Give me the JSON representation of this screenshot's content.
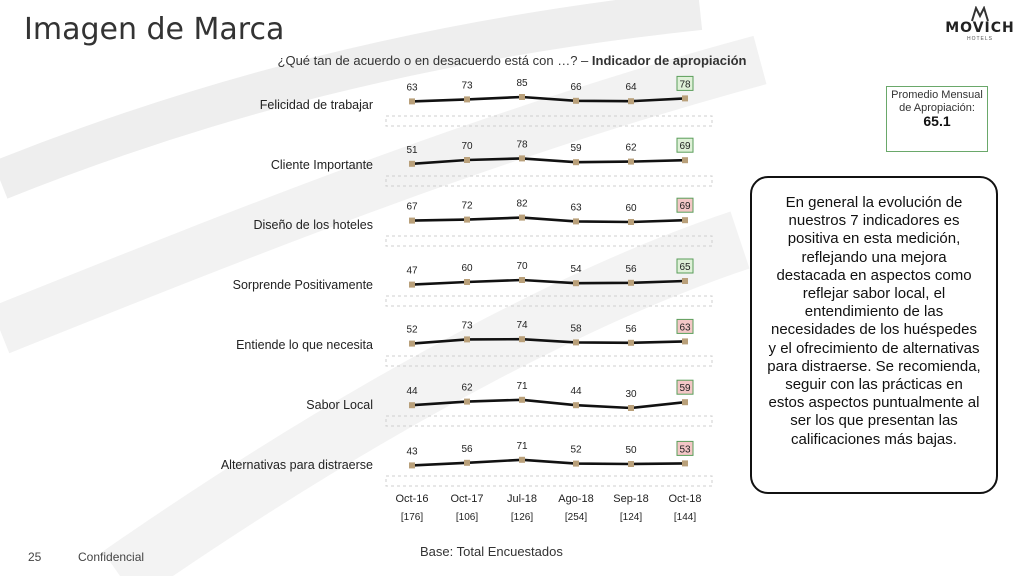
{
  "page": {
    "title": "Imagen de Marca",
    "subtitle_question": "¿Qué tan de acuerdo o en desacuerdo está con …? –",
    "subtitle_bold": "Indicador de apropiación",
    "logo_name": "MOVICH",
    "logo_sub": "HOTELS",
    "base": "Base: Total Encuestados",
    "page_number": "25",
    "confidential": "Confidencial"
  },
  "average_box": {
    "label": "Promedio Mensual de Apropiación:",
    "value": "65.1",
    "border_color": "#6aa86a"
  },
  "comment": {
    "text": "En general la evolución de nuestros 7 indicadores es positiva en esta medición, reflejando una mejora destacada en aspectos como reflejar sabor local, el entendimiento de las necesidades de los huéspedes y el ofrecimiento de alternativas para distraerse. Se recomienda, seguir con las prácticas en estos aspectos puntualmente al ser los que presentan las calificaciones más bajas."
  },
  "colors": {
    "line": "#111111",
    "marker": "#b9a07a",
    "highlight_green_fill": "#dff0d8",
    "highlight_green_border": "#5a9e5a",
    "highlight_red_fill": "#f4c7c7",
    "highlight_red_border": "#5a9e5a"
  },
  "chart_data": {
    "type": "line",
    "x": [
      "Oct-16",
      "Oct-17",
      "Jul-18",
      "Ago-18",
      "Sep-18",
      "Oct-18"
    ],
    "x_bases": [
      "[176]",
      "[106]",
      "[126]",
      "[254]",
      "[124]",
      "[144]"
    ],
    "series": [
      {
        "name": "Felicidad de trabajar",
        "values": [
          63,
          73,
          85,
          66,
          64,
          78
        ],
        "last_highlight": "green"
      },
      {
        "name": "Cliente Importante",
        "values": [
          51,
          70,
          78,
          59,
          62,
          69
        ],
        "last_highlight": "green"
      },
      {
        "name": "Diseño de los hoteles",
        "values": [
          67,
          72,
          82,
          63,
          60,
          69
        ],
        "last_highlight": "red"
      },
      {
        "name": "Sorprende Positivamente",
        "values": [
          47,
          60,
          70,
          54,
          56,
          65
        ],
        "last_highlight": "green"
      },
      {
        "name": "Entiende lo que necesita",
        "values": [
          52,
          73,
          74,
          58,
          56,
          63
        ],
        "last_highlight": "red"
      },
      {
        "name": "Sabor Local",
        "values": [
          44,
          62,
          71,
          44,
          30,
          59
        ],
        "last_highlight": "red"
      },
      {
        "name": "Alternativas para distraerse",
        "values": [
          43,
          56,
          71,
          52,
          50,
          53
        ],
        "last_highlight": "red"
      }
    ]
  }
}
